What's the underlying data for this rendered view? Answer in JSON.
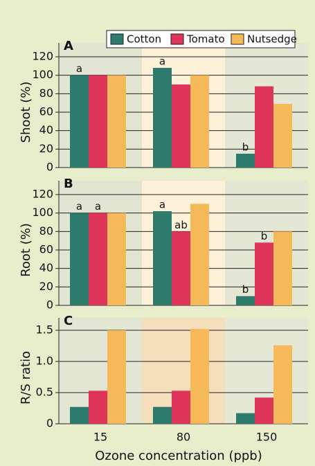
{
  "chart_data": [
    {
      "type": "bar",
      "label": "A",
      "ylabel": "Shoot (%)",
      "series": [
        {
          "name": "Cotton",
          "color": "#2e7b6e",
          "values": [
            100,
            108,
            15
          ]
        },
        {
          "name": "Tomato",
          "color": "#e0355a",
          "values": [
            100,
            90,
            88
          ]
        },
        {
          "name": "Nutsedge",
          "color": "#f6b95a",
          "values": [
            100,
            100,
            69
          ]
        }
      ],
      "ylim": [
        0,
        135
      ],
      "yticks": [
        0,
        20,
        40,
        60,
        80,
        100,
        120
      ],
      "grid": true,
      "legend": "top-right",
      "annotations": [
        {
          "text": "a",
          "series": 0,
          "index": 0
        },
        {
          "text": "a",
          "series": 0,
          "index": 1
        },
        {
          "text": "b",
          "series": 0,
          "index": 2
        }
      ]
    },
    {
      "type": "bar",
      "label": "B",
      "ylabel": "Root (%)",
      "series": [
        {
          "color": "#2e7b6e",
          "values": [
            100,
            102,
            10
          ]
        },
        {
          "color": "#e0355a",
          "values": [
            100,
            80,
            68
          ]
        },
        {
          "color": "#f6b95a",
          "values": [
            100,
            110,
            80
          ]
        }
      ],
      "ylim": [
        0,
        135
      ],
      "yticks": [
        0,
        20,
        40,
        60,
        80,
        100,
        120
      ],
      "grid": true,
      "annotations": [
        {
          "text": "a",
          "series": 0,
          "index": 0
        },
        {
          "text": "a",
          "series": 1,
          "index": 0
        },
        {
          "text": "a",
          "series": 0,
          "index": 1
        },
        {
          "text": "ab",
          "series": 1,
          "index": 1
        },
        {
          "text": "b",
          "series": 0,
          "index": 2
        },
        {
          "text": "b",
          "series": 1,
          "index": 2
        }
      ]
    },
    {
      "type": "bar",
      "label": "C",
      "ylabel": "R/S ratio",
      "xlabel": "Ozone concentration (ppb)",
      "categories": [
        "15",
        "80",
        "150"
      ],
      "series": [
        {
          "color": "#2e7b6e",
          "values": [
            0.27,
            0.27,
            0.17
          ]
        },
        {
          "color": "#e0355a",
          "values": [
            0.53,
            0.53,
            0.42
          ]
        },
        {
          "color": "#f6b95a",
          "values": [
            1.5,
            1.52,
            1.26
          ]
        }
      ],
      "ylim": [
        0,
        1.7
      ],
      "yticks": [
        0,
        0.5,
        {
          "value": 1,
          "label": "1.0"
        },
        1.5
      ],
      "grid": true
    }
  ]
}
